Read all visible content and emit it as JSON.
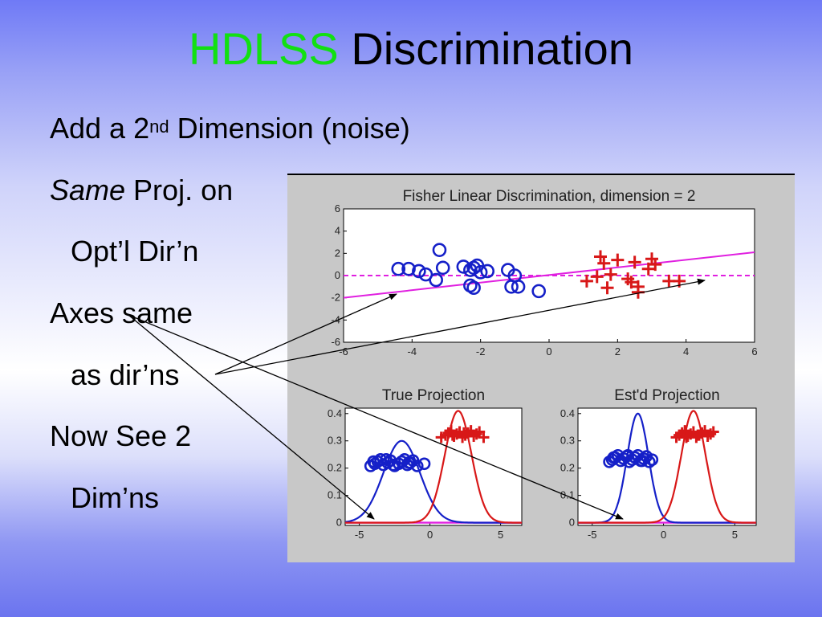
{
  "slide": {
    "title_accent": "HDLSS",
    "title_rest": "Discrimination",
    "bullets": {
      "b1_pre": "Add a 2",
      "b1_sup": "nd",
      "b1_post": " Dimension (noise)",
      "b2_em": "Same",
      "b2_rest": " Proj. on",
      "b3": "Opt’l Dir’n",
      "b4": "Axes same",
      "b5": "as dir’ns",
      "b6": "Now See 2",
      "b7": "Dim’ns"
    },
    "colors": {
      "accent": "#12e012",
      "class1": "#1520c8",
      "class2": "#d81818",
      "direction": "#e020e0"
    }
  },
  "chart_data": [
    {
      "type": "scatter",
      "title": "Fisher Linear Discrimination, dimension = 2",
      "xlabel": "",
      "ylabel": "",
      "xlim": [
        -6,
        6
      ],
      "ylim": [
        -6,
        6
      ],
      "xticks": [
        "-6",
        "-4",
        "-2",
        "0",
        "2",
        "4",
        "6"
      ],
      "yticks": [
        "6",
        "4",
        "2",
        "0",
        "-2",
        "-4",
        "-6"
      ],
      "grid": false,
      "series": [
        {
          "marker": "circle",
          "color": "#1520c8",
          "points": [
            [
              -4.4,
              0.6
            ],
            [
              -4.1,
              0.6
            ],
            [
              -3.8,
              0.4
            ],
            [
              -3.6,
              0.1
            ],
            [
              -3.2,
              2.3
            ],
            [
              -3.1,
              0.7
            ],
            [
              -3.3,
              -0.4
            ],
            [
              -2.5,
              0.8
            ],
            [
              -2.3,
              0.5
            ],
            [
              -2.2,
              0.7
            ],
            [
              -2.1,
              0.9
            ],
            [
              -2.0,
              0.3
            ],
            [
              -1.8,
              0.4
            ],
            [
              -2.2,
              -1.1
            ],
            [
              -2.3,
              -0.9
            ],
            [
              -1.2,
              0.5
            ],
            [
              -1.0,
              0.0
            ],
            [
              -1.1,
              -1.0
            ],
            [
              -0.9,
              -1.0
            ],
            [
              -0.3,
              -1.4
            ]
          ]
        },
        {
          "marker": "plus",
          "color": "#d81818",
          "points": [
            [
              1.1,
              -0.5
            ],
            [
              1.4,
              -0.1
            ],
            [
              1.5,
              1.7
            ],
            [
              1.6,
              1.1
            ],
            [
              1.7,
              -1.1
            ],
            [
              1.8,
              0.1
            ],
            [
              2.0,
              1.4
            ],
            [
              2.3,
              -0.3
            ],
            [
              2.4,
              -0.6
            ],
            [
              2.5,
              1.2
            ],
            [
              2.6,
              -1.5
            ],
            [
              2.6,
              -1.0
            ],
            [
              2.9,
              0.6
            ],
            [
              3.0,
              1.5
            ],
            [
              3.1,
              1.0
            ],
            [
              3.5,
              -0.5
            ],
            [
              3.8,
              -0.5
            ]
          ]
        }
      ],
      "lines": [
        {
          "style": "dashed",
          "color": "#e020e0",
          "points": [
            [
              -6,
              0
            ],
            [
              6,
              0
            ]
          ]
        },
        {
          "style": "solid",
          "color": "#e020e0",
          "points": [
            [
              -6,
              -2.0
            ],
            [
              6,
              2.1
            ]
          ]
        }
      ]
    },
    {
      "type": "line",
      "title": "True Projection",
      "xlim": [
        -6,
        6.5
      ],
      "ylim": [
        -0.01,
        0.42
      ],
      "xticks": [
        "-5",
        "0",
        "5"
      ],
      "yticks": [
        "0.4",
        "0.3",
        "0.2",
        "0.1",
        "0"
      ],
      "series": [
        {
          "color": "#1520c8",
          "kind": "density",
          "mean": -2,
          "sd": 1.3,
          "peak": 0.3
        },
        {
          "color": "#d81818",
          "kind": "density",
          "mean": 2,
          "sd": 0.95,
          "peak": 0.41
        }
      ],
      "point_rows": [
        {
          "marker": "circle",
          "color": "#1520c8",
          "y": 0.22,
          "x": [
            -4.2,
            -3.9,
            -3.7,
            -3.5,
            -3.3,
            -3.0,
            -2.8,
            -2.5,
            -2.2,
            -2.0,
            -1.8,
            -1.6,
            -1.4,
            -1.2,
            -0.9,
            -0.4,
            -4.0,
            -3.1,
            -2.6,
            -1.5
          ]
        },
        {
          "marker": "plus",
          "color": "#d81818",
          "y": 0.325,
          "x": [
            0.8,
            1.1,
            1.3,
            1.5,
            1.7,
            1.9,
            2.1,
            2.3,
            2.5,
            2.7,
            2.9,
            3.1,
            3.3,
            3.5,
            3.8,
            1.6,
            2.4
          ]
        }
      ],
      "baseline": {
        "color": "#e020e0",
        "y": 0
      }
    },
    {
      "type": "line",
      "title": "Est'd Projection",
      "xlim": [
        -6,
        6.5
      ],
      "ylim": [
        -0.01,
        0.42
      ],
      "xticks": [
        "-5",
        "0",
        "5"
      ],
      "yticks": [
        "0.4",
        "0.3",
        "0.2",
        "0.1",
        "0"
      ],
      "series": [
        {
          "color": "#1520c8",
          "kind": "density",
          "mean": -1.8,
          "sd": 0.75,
          "peak": 0.4
        },
        {
          "color": "#d81818",
          "kind": "density",
          "mean": 2.1,
          "sd": 0.85,
          "peak": 0.41
        }
      ],
      "point_rows": [
        {
          "marker": "circle",
          "color": "#1520c8",
          "y": 0.235,
          "x": [
            -3.8,
            -3.6,
            -3.4,
            -3.2,
            -3.0,
            -2.8,
            -2.6,
            -2.4,
            -2.2,
            -2.0,
            -1.8,
            -1.6,
            -1.4,
            -1.2,
            -1.0,
            -0.8,
            -3.5,
            -2.5,
            -1.5
          ]
        },
        {
          "marker": "plus",
          "color": "#d81818",
          "y": 0.325,
          "x": [
            0.9,
            1.1,
            1.3,
            1.5,
            1.7,
            1.9,
            2.1,
            2.3,
            2.5,
            2.7,
            2.9,
            3.1,
            3.3,
            3.5,
            1.6,
            2.4
          ]
        }
      ],
      "baseline": {
        "color": "#e020e0",
        "y": 0
      }
    }
  ]
}
